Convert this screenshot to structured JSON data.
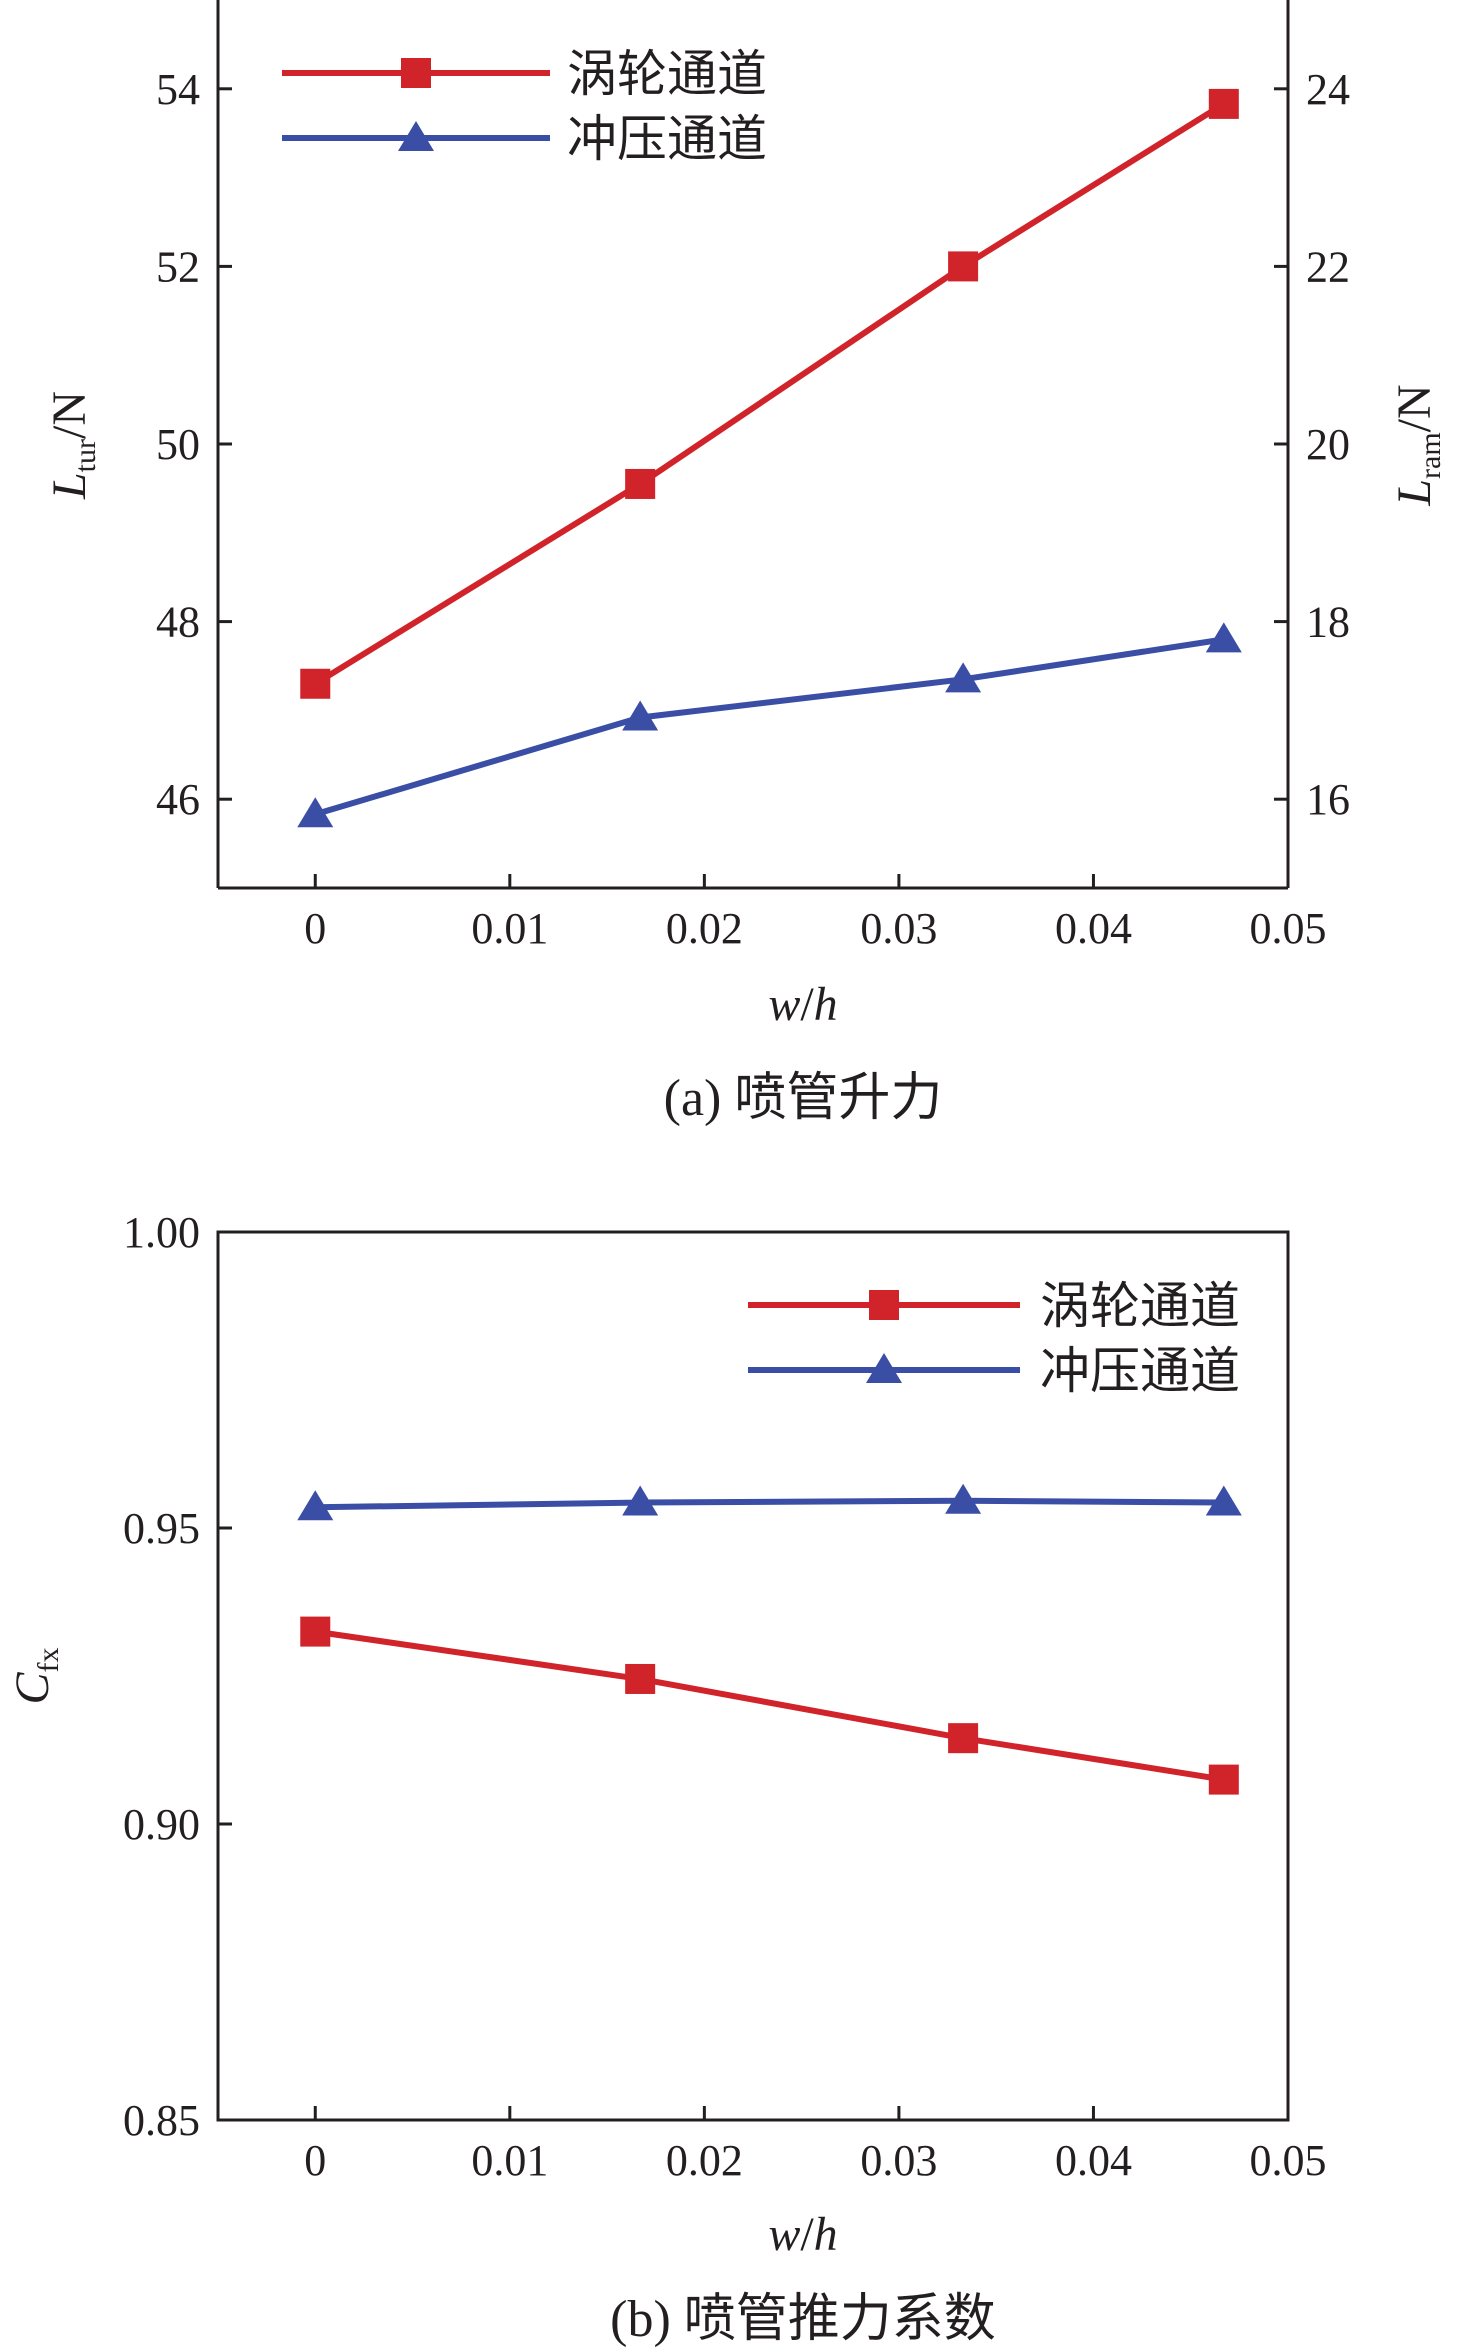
{
  "chart_data": [
    {
      "type": "line",
      "caption": "(a) 喷管升力",
      "xlabel": "w/h",
      "xlabel_parts": [
        "w",
        "/",
        "h"
      ],
      "ylabel_left": "Ltur/N",
      "ylabel_left_parts": [
        "L",
        "tur",
        "/N"
      ],
      "ylabel_right": "Lram/N",
      "ylabel_right_parts": [
        "L",
        "ram",
        "/N"
      ],
      "xlim": [
        -0.005,
        0.05
      ],
      "xticks": [
        0,
        0.01,
        0.02,
        0.03,
        0.04,
        0.05
      ],
      "xtick_labels": [
        "0",
        "0.01",
        "0.02",
        "0.03",
        "0.04",
        "0.05"
      ],
      "ylim_left": [
        45,
        55
      ],
      "yticks_left": [
        46,
        48,
        50,
        52,
        54
      ],
      "ytick_labels_left": [
        "46",
        "48",
        "50",
        "52",
        "54"
      ],
      "ylim_right": [
        15,
        25
      ],
      "yticks_right": [
        16,
        18,
        20,
        22,
        24
      ],
      "ytick_labels_right": [
        "16",
        "18",
        "20",
        "22",
        "24"
      ],
      "legend_position": "top-left",
      "series": [
        {
          "name": "涡轮通道",
          "axis": "left",
          "marker": "square",
          "color": "#d0232a",
          "x": [
            0,
            0.0167,
            0.0333,
            0.0467
          ],
          "y": [
            47.3,
            49.55,
            52.0,
            53.83
          ]
        },
        {
          "name": "冲压通道",
          "axis": "right",
          "marker": "triangle",
          "color": "#3a4ea6",
          "x": [
            0,
            0.0167,
            0.0333,
            0.0467
          ],
          "y": [
            15.83,
            16.92,
            17.35,
            17.8
          ]
        }
      ]
    },
    {
      "type": "line",
      "caption": "(b) 喷管推力系数",
      "xlabel": "w/h",
      "xlabel_parts": [
        "w",
        "/",
        "h"
      ],
      "ylabel_left": "Cfx",
      "ylabel_left_parts": [
        "C",
        "fx",
        ""
      ],
      "xlim": [
        -0.005,
        0.05
      ],
      "xticks": [
        0,
        0.01,
        0.02,
        0.03,
        0.04,
        0.05
      ],
      "xtick_labels": [
        "0",
        "0.01",
        "0.02",
        "0.03",
        "0.04",
        "0.05"
      ],
      "ylim_left": [
        0.85,
        1.0
      ],
      "yticks_left": [
        0.85,
        0.9,
        0.95,
        1.0
      ],
      "ytick_labels_left": [
        "0.85",
        "0.90",
        "0.95",
        "1.00"
      ],
      "legend_position": "top-right",
      "series": [
        {
          "name": "涡轮通道",
          "axis": "left",
          "marker": "square",
          "color": "#d0232a",
          "x": [
            0,
            0.0167,
            0.0333,
            0.0467
          ],
          "y": [
            0.9325,
            0.9245,
            0.9145,
            0.9075
          ]
        },
        {
          "name": "冲压通道",
          "axis": "left",
          "marker": "triangle",
          "color": "#3a4ea6",
          "x": [
            0,
            0.0167,
            0.0333,
            0.0467
          ],
          "y": [
            0.9535,
            0.9543,
            0.9546,
            0.9543
          ]
        }
      ]
    }
  ]
}
